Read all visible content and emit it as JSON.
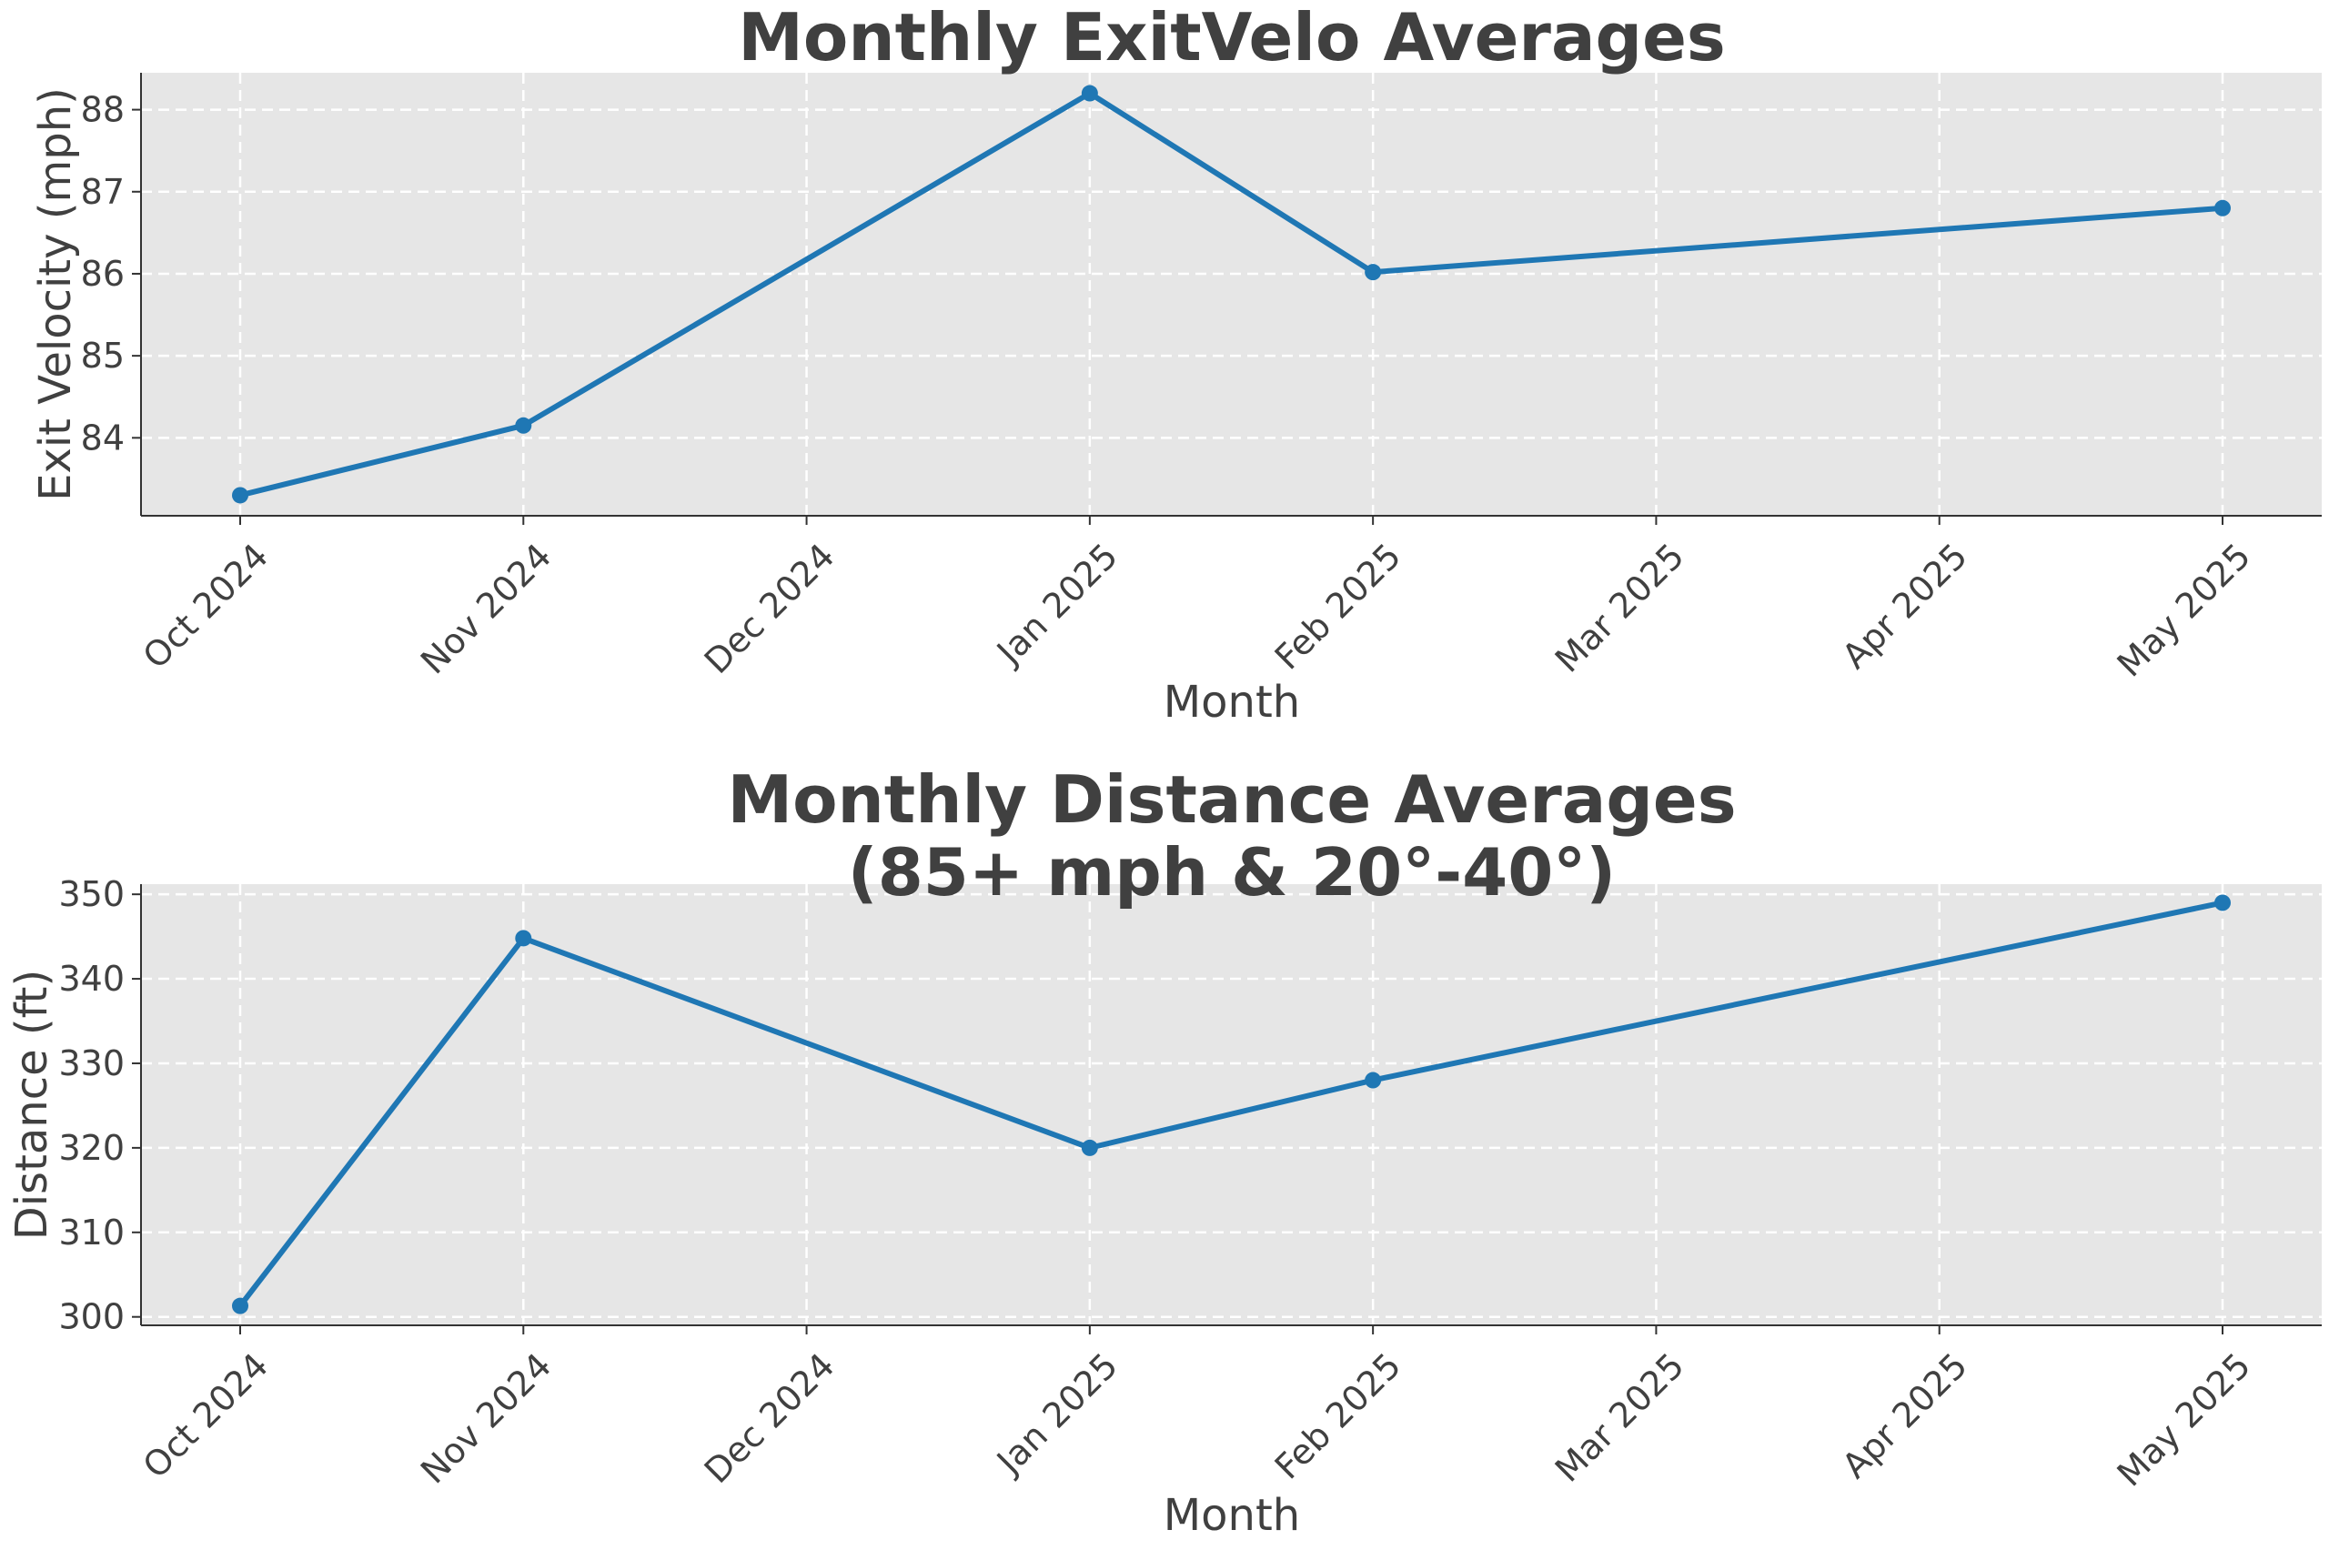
{
  "chart_data": [
    {
      "type": "line",
      "title": "Monthly ExitVelo Averages",
      "xlabel": "Month",
      "ylabel": "Exit Velocity (mph)",
      "x_ticks": [
        "Oct 2024",
        "Nov 2024",
        "Dec 2024",
        "Jan 2025",
        "Feb 2025",
        "Mar 2025",
        "Apr 2025",
        "May 2025"
      ],
      "y_ticks": [
        84,
        85,
        86,
        87,
        88
      ],
      "ylim": [
        83.05,
        88.45
      ],
      "grid": true,
      "series": [
        {
          "color": "#1f77b4",
          "x": [
            "Oct 2024",
            "Nov 2024",
            "Jan 2025",
            "Feb 2025",
            "May 2025"
          ],
          "values": [
            83.3,
            84.15,
            88.2,
            86.02,
            86.8
          ]
        }
      ]
    },
    {
      "type": "line",
      "title": "Monthly Distance Averages\n(85+ mph & 20°-40°)",
      "xlabel": "Month",
      "ylabel": "Distance (ft)",
      "x_ticks": [
        "Oct 2024",
        "Nov 2024",
        "Dec 2024",
        "Jan 2025",
        "Feb 2025",
        "Mar 2025",
        "Apr 2025",
        "May 2025"
      ],
      "y_ticks": [
        300,
        310,
        320,
        330,
        340,
        350
      ],
      "ylim": [
        299.0,
        351.2
      ],
      "grid": true,
      "series": [
        {
          "color": "#1f77b4",
          "x": [
            "Oct 2024",
            "Nov 2024",
            "Jan 2025",
            "Feb 2025",
            "May 2025"
          ],
          "values": [
            301.3,
            344.8,
            320.0,
            328.0,
            349.0
          ]
        }
      ]
    }
  ]
}
